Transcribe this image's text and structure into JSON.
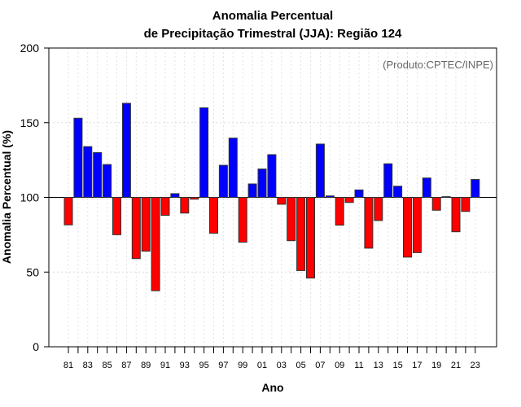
{
  "chart_data": {
    "type": "bar",
    "title_line1": "Anomalia Percentual",
    "title_line2": "de Precipitação Trimestral (JJA): Região 124",
    "credit": "(Produto:CPTEC/INPE)",
    "xlabel": "Ano",
    "ylabel": "Anomalia Percentual (%)",
    "ylim": [
      0,
      200
    ],
    "yticks": [
      0,
      50,
      100,
      150,
      200
    ],
    "baseline": 100,
    "grid": true,
    "colors": {
      "above": "#0000ff",
      "below": "#ff0000"
    },
    "x_tick_labels": [
      "81",
      "83",
      "85",
      "87",
      "89",
      "91",
      "93",
      "95",
      "97",
      "99",
      "01",
      "03",
      "05",
      "07",
      "09",
      "11",
      "13",
      "15",
      "17",
      "19",
      "21",
      "23"
    ],
    "categories": [
      1981,
      1982,
      1983,
      1984,
      1985,
      1986,
      1987,
      1988,
      1989,
      1990,
      1991,
      1992,
      1993,
      1994,
      1995,
      1996,
      1997,
      1998,
      1999,
      2000,
      2001,
      2002,
      2003,
      2004,
      2005,
      2006,
      2007,
      2008,
      2009,
      2010,
      2011,
      2012,
      2013,
      2014,
      2015,
      2016,
      2017,
      2018,
      2019,
      2020,
      2021,
      2022,
      2023
    ],
    "values": [
      81.6,
      153,
      134,
      130,
      122,
      75,
      163,
      59,
      64,
      37.5,
      88,
      102.5,
      89.5,
      98.8,
      160,
      76,
      121.5,
      139.7,
      70,
      109,
      119,
      128.6,
      95.4,
      71,
      51,
      46,
      135.7,
      101,
      81.4,
      96.6,
      105,
      66,
      84.5,
      122.5,
      107.5,
      60,
      63,
      113,
      91.4,
      100.5,
      77,
      90.6,
      112
    ]
  }
}
